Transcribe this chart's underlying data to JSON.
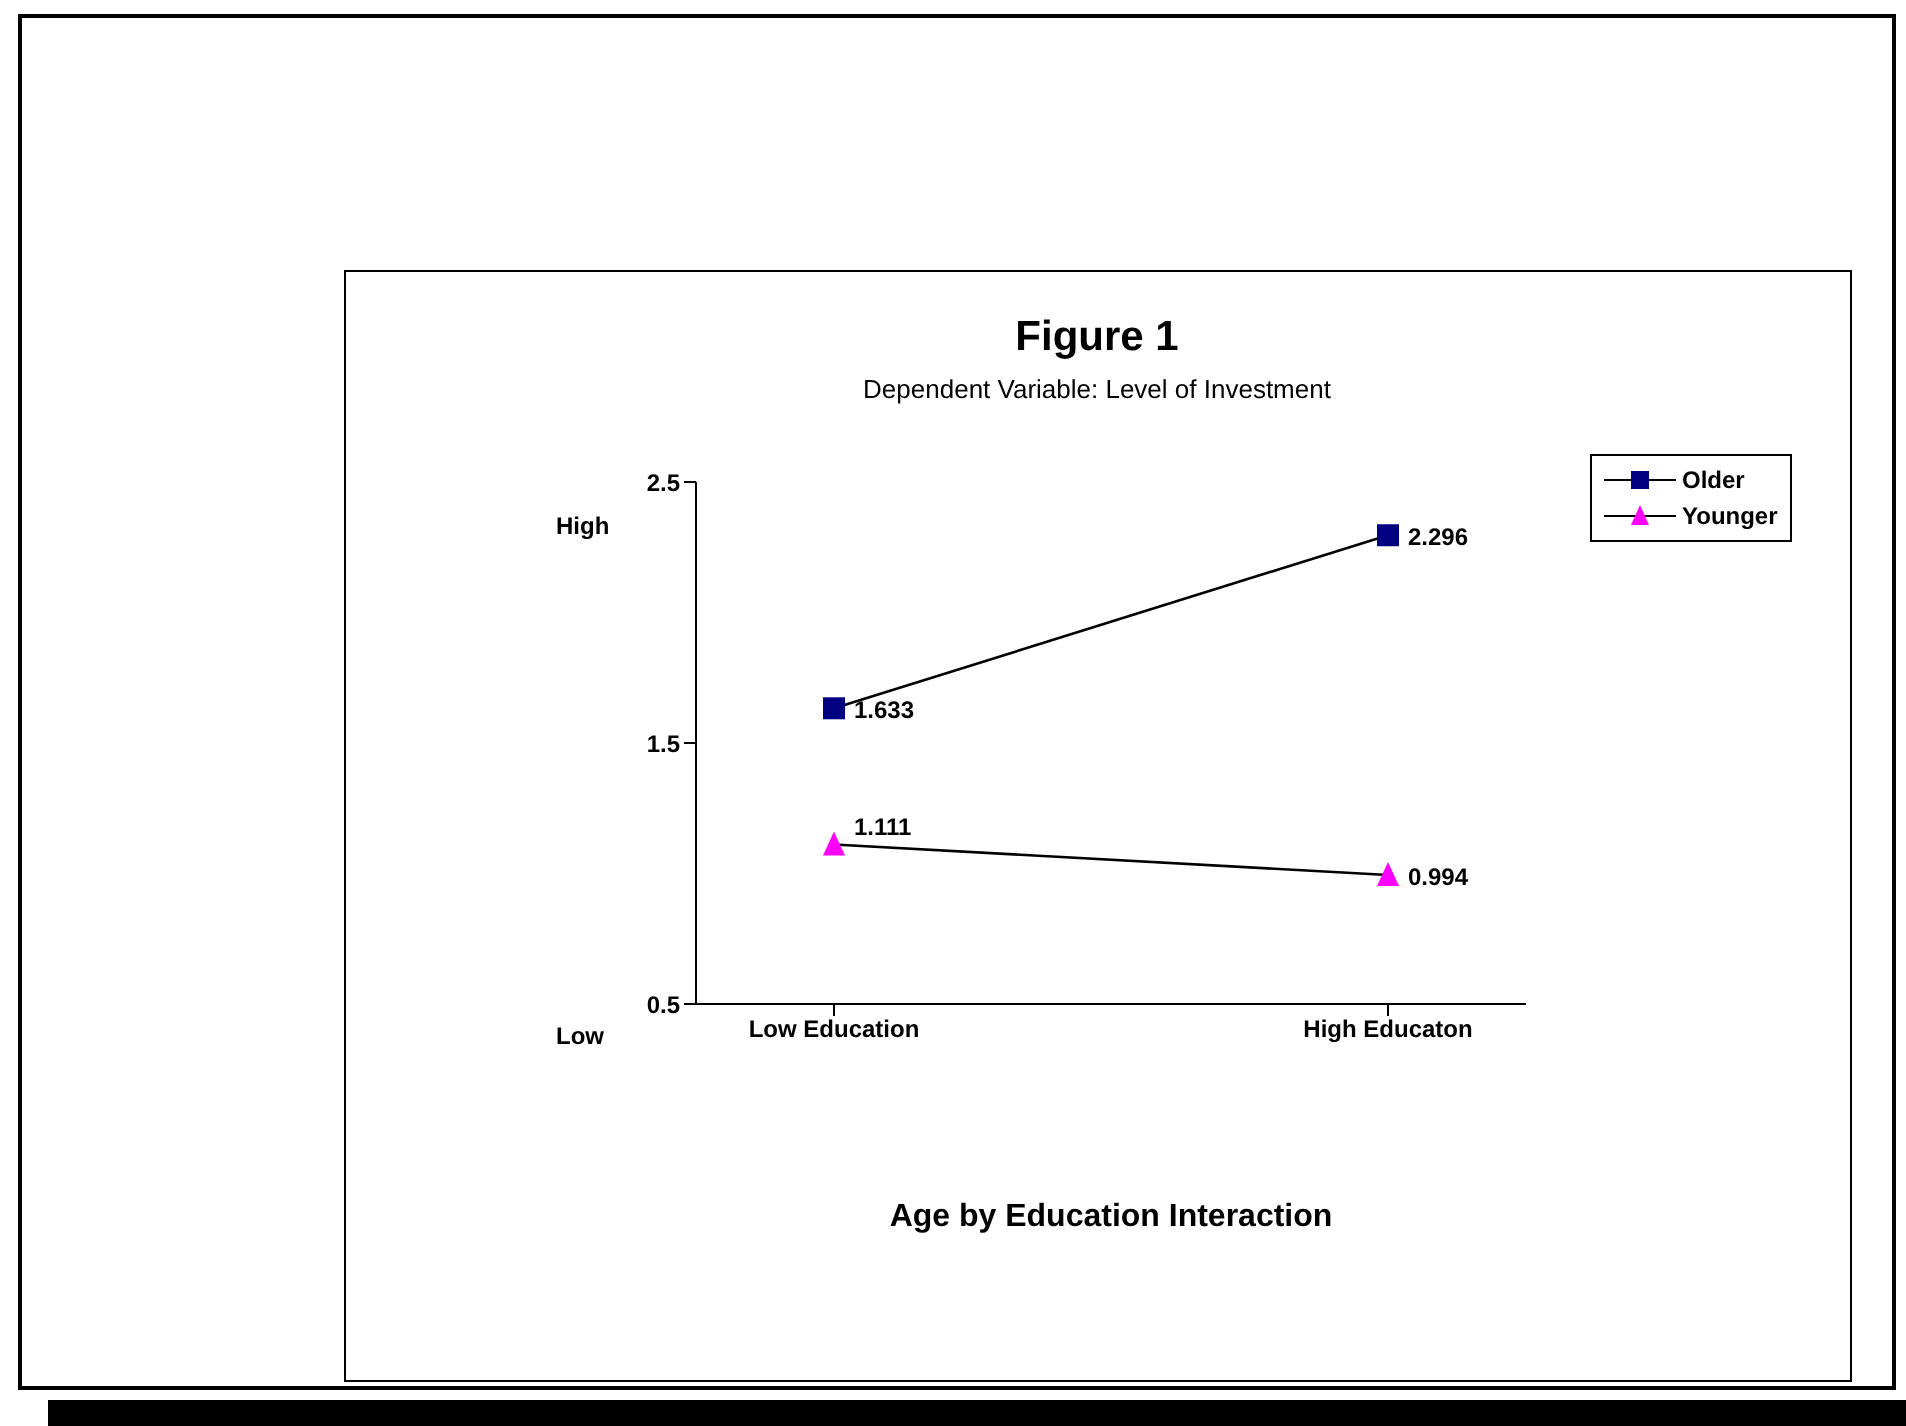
{
  "chart_data": {
    "type": "line",
    "title": "Figure 1",
    "subtitle": "Dependent Variable: Level of Investment",
    "xlabel": "Age by Education Interaction",
    "categories": [
      "Low Education",
      "High Educaton"
    ],
    "series": [
      {
        "name": "Older",
        "color": "#000080",
        "values": [
          1.633,
          2.296
        ],
        "marker": "square"
      },
      {
        "name": "Younger",
        "color": "#ff00ff",
        "values": [
          1.111,
          0.994
        ],
        "marker": "triangle"
      }
    ],
    "ylim": [
      0.5,
      2.5
    ],
    "yticks": [
      0.5,
      1.5,
      2.5
    ],
    "grid": false,
    "legend": "top right",
    "data_labels": true,
    "annotations": [
      "High",
      "Low"
    ]
  }
}
